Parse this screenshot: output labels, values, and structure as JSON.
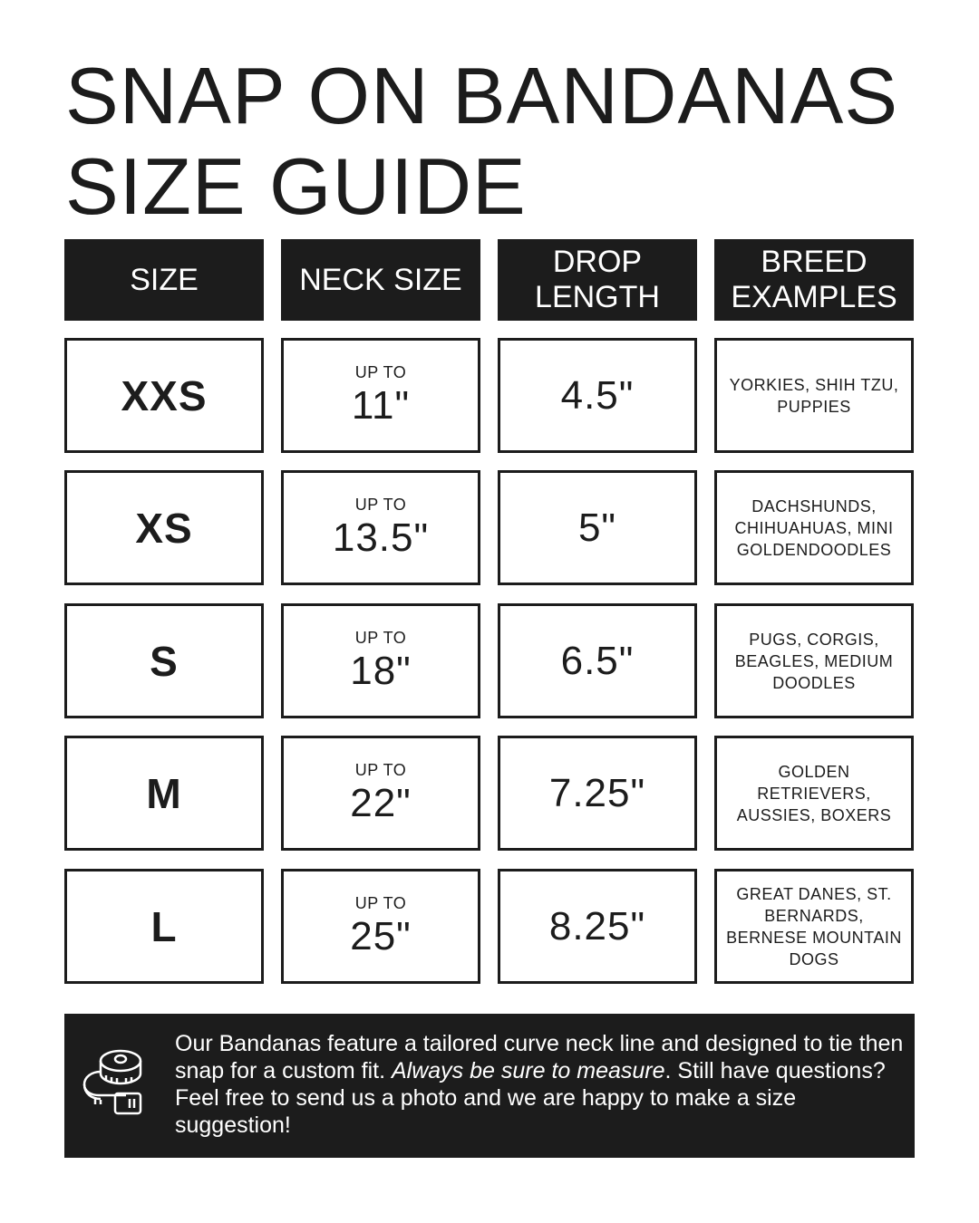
{
  "title": [
    "SNAP ON BANDANAS",
    "SIZE GUIDE"
  ],
  "headers": [
    [
      "SIZE"
    ],
    [
      "NECK SIZE"
    ],
    [
      "DROP",
      "LENGTH"
    ],
    [
      "BREED",
      "EXAMPLES"
    ]
  ],
  "rows": [
    {
      "size": "XXS",
      "neck_prefix": "UP TO",
      "neck": "11\"",
      "drop": "4.5\"",
      "breeds": [
        "YORKIES, SHIH TZU,",
        "PUPPIES"
      ]
    },
    {
      "size": "XS",
      "neck_prefix": "UP TO",
      "neck": "13.5\"",
      "drop": "5\"",
      "breeds": [
        "DACHSHUNDS,",
        "CHIHUAHUAS, MINI",
        "GOLDENDOODLES"
      ]
    },
    {
      "size": "S",
      "neck_prefix": "UP TO",
      "neck": "18\"",
      "drop": "6.5\"",
      "breeds": [
        "PUGS, CORGIS,",
        "BEAGLES, MEDIUM",
        "DOODLES"
      ]
    },
    {
      "size": "M",
      "neck_prefix": "UP TO",
      "neck": "22\"",
      "drop": "7.25\"",
      "breeds": [
        "GOLDEN",
        "RETRIEVERS,",
        "AUSSIES, BOXERS"
      ]
    },
    {
      "size": "L",
      "neck_prefix": "UP TO",
      "neck": "25\"",
      "drop": "8.25\"",
      "breeds": [
        "GREAT DANES, ST.",
        "BERNARDS,",
        "BERNESE MOUNTAIN",
        "DOGS"
      ]
    }
  ],
  "footer": {
    "icon": "tape-measure-icon",
    "text_1": "Our Bandanas feature a tailored curve neck line and designed to tie then snap for a custom fit. ",
    "text_italic": "Always be sure to measure",
    "text_2": ". Still have questions? Feel free to send us a photo and we are happy to make a size suggestion!"
  },
  "colors": {
    "ink": "#1c1c1c",
    "background": "#ffffff"
  }
}
